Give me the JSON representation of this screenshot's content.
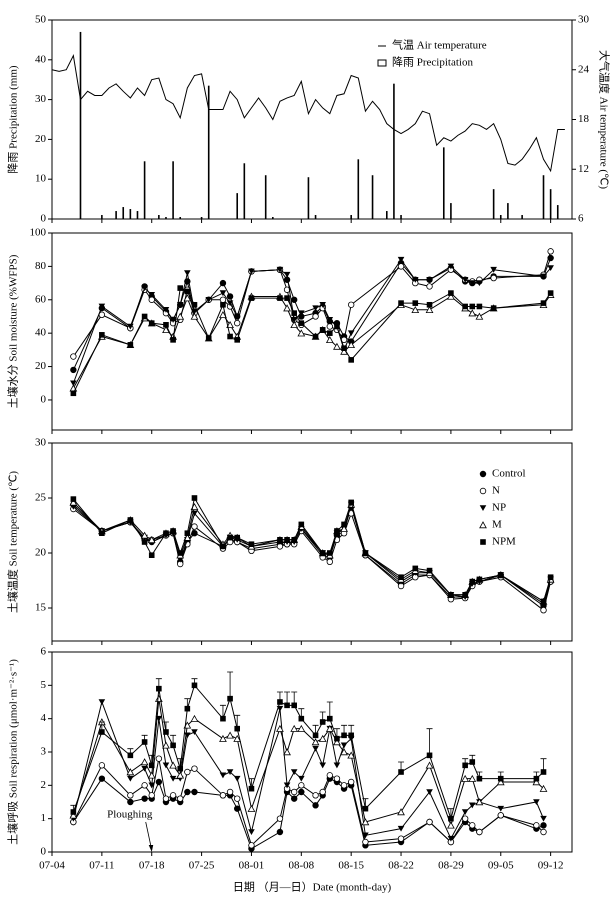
{
  "chart_data": [
    {
      "type": "combo",
      "ylabel": "降雨 Precipitation (mm)",
      "y2label": "大气温度  Air temperature (℃)",
      "ylim": [
        0,
        50
      ],
      "yticks": [
        0,
        10,
        20,
        30,
        40,
        50
      ],
      "y2lim": [
        6,
        30
      ],
      "y2ticks": [
        6,
        12,
        18,
        24,
        30
      ],
      "legend": "upper right",
      "series": [
        {
          "name": "气温 Air temperature",
          "type": "line",
          "axis": "y2",
          "color": "#000000",
          "x": [
            "07-04",
            "07-05",
            "07-06",
            "07-07",
            "07-08",
            "07-09",
            "07-10",
            "07-11",
            "07-12",
            "07-13",
            "07-14",
            "07-15",
            "07-16",
            "07-17",
            "07-18",
            "07-19",
            "07-20",
            "07-21",
            "07-22",
            "07-23",
            "07-24",
            "07-25",
            "07-26",
            "07-27",
            "07-28",
            "07-29",
            "07-30",
            "07-31",
            "08-01",
            "08-02",
            "08-03",
            "08-04",
            "08-05",
            "08-06",
            "08-07",
            "08-08",
            "08-09",
            "08-10",
            "08-11",
            "08-12",
            "08-13",
            "08-14",
            "08-15",
            "08-16",
            "08-17",
            "08-18",
            "08-19",
            "08-20",
            "08-21",
            "08-22",
            "08-23",
            "08-24",
            "08-25",
            "08-26",
            "08-27",
            "08-28",
            "08-29",
            "08-30",
            "08-31",
            "09-01",
            "09-02",
            "09-03",
            "09-04",
            "09-05",
            "09-06",
            "09-07",
            "09-08",
            "09-09",
            "09-10",
            "09-11",
            "09-12",
            "09-13",
            "09-14"
          ],
          "values": [
            24.0,
            23.8,
            24.0,
            25.7,
            20.4,
            21.4,
            20.9,
            20.9,
            21.8,
            22.3,
            21.4,
            20.6,
            21.8,
            20.9,
            22.8,
            23.0,
            20.4,
            19.9,
            18.2,
            21.8,
            23.3,
            23.5,
            19.2,
            19.2,
            19.2,
            21.4,
            20.4,
            18.2,
            19.4,
            20.6,
            19.4,
            18.0,
            20.2,
            20.6,
            20.9,
            22.6,
            18.7,
            20.4,
            19.4,
            18.7,
            20.9,
            21.1,
            23.3,
            23.0,
            19.0,
            20.2,
            19.2,
            17.5,
            16.8,
            16.3,
            16.8,
            17.5,
            19.0,
            18.7,
            14.9,
            15.8,
            15.4,
            16.1,
            16.6,
            17.5,
            17.3,
            16.8,
            17.5,
            15.6,
            12.7,
            12.5,
            13.2,
            14.4,
            15.8,
            13.2,
            11.8,
            16.8,
            16.8
          ]
        },
        {
          "name": "降雨 Precipitation",
          "type": "bar",
          "color": "#000000",
          "x": [
            "07-08",
            "07-11",
            "07-13",
            "07-14",
            "07-15",
            "07-16",
            "07-17",
            "07-19",
            "07-20",
            "07-21",
            "07-22",
            "07-25",
            "07-26",
            "07-30",
            "07-31",
            "08-03",
            "08-04",
            "08-09",
            "08-10",
            "08-15",
            "08-16",
            "08-18",
            "08-20",
            "08-21",
            "08-22",
            "08-28",
            "08-29",
            "09-04",
            "09-05",
            "09-06",
            "09-08",
            "09-11",
            "09-12",
            "09-13"
          ],
          "values": [
            47,
            1,
            2,
            3,
            2.5,
            2,
            14.5,
            1,
            0.5,
            14.5,
            0.5,
            0.5,
            33.5,
            6.5,
            14,
            11,
            0.5,
            10.5,
            1,
            1,
            15,
            11,
            2,
            34,
            1,
            18,
            4,
            7.5,
            1,
            4,
            1,
            11,
            7.5,
            3.5
          ]
        }
      ]
    },
    {
      "type": "line",
      "ylabel": "土壤水分 Soil moisture (%WFPS)",
      "ylim": [
        -18,
        100
      ],
      "yticks": [
        0,
        20,
        40,
        60,
        80,
        100
      ],
      "x": [
        "07-07",
        "07-11",
        "07-15",
        "07-17",
        "07-18",
        "07-20",
        "07-21",
        "07-22",
        "07-23",
        "07-24",
        "07-26",
        "07-28",
        "07-29",
        "07-30",
        "08-01",
        "08-05",
        "08-06",
        "08-07",
        "08-08",
        "08-10",
        "08-11",
        "08-12",
        "08-13",
        "08-14",
        "08-15",
        "08-22",
        "08-24",
        "08-26",
        "08-29",
        "08-31",
        "09-01",
        "09-02",
        "09-04",
        "09-11",
        "09-12"
      ],
      "series": [
        {
          "name": "Control",
          "marker": "circle",
          "color": "#000000",
          "values": [
            18,
            55,
            43,
            68,
            62,
            53,
            48,
            57,
            71,
            52,
            60,
            70,
            62,
            50,
            77,
            78,
            72,
            60,
            50,
            52,
            56,
            47,
            46,
            38,
            35,
            82,
            72,
            72,
            79,
            71,
            70,
            71,
            74,
            74,
            85
          ]
        },
        {
          "name": "N",
          "marker": "circle-open",
          "color": "#000000",
          "values": [
            26,
            51,
            43,
            66,
            60,
            52,
            46,
            48,
            66,
            52,
            60,
            60,
            56,
            46,
            77,
            78,
            66,
            48,
            45,
            50,
            55,
            44,
            42,
            36,
            57,
            80,
            70,
            68,
            78,
            72,
            71,
            72,
            73,
            75,
            89
          ]
        },
        {
          "name": "NP",
          "marker": "triangle-down",
          "color": "#000000",
          "values": [
            10,
            56,
            44,
            67,
            63,
            54,
            48,
            57,
            76,
            53,
            60,
            64,
            58,
            50,
            77,
            78,
            75,
            48,
            52,
            55,
            57,
            48,
            44,
            30,
            40,
            84,
            72,
            72,
            80,
            72,
            70,
            70,
            78,
            74,
            79
          ]
        },
        {
          "name": "M",
          "marker": "triangle-open",
          "color": "#000000",
          "values": [
            7,
            38,
            33,
            49,
            46,
            42,
            38,
            50,
            61,
            50,
            37,
            51,
            45,
            38,
            62,
            62,
            55,
            45,
            40,
            38,
            42,
            36,
            32,
            29,
            33,
            57,
            54,
            54,
            62,
            55,
            52,
            50,
            55,
            57,
            63
          ]
        },
        {
          "name": "NPM",
          "marker": "square",
          "color": "#000000",
          "values": [
            4,
            39,
            33,
            50,
            46,
            45,
            36,
            67,
            65,
            57,
            37,
            57,
            38,
            36,
            61,
            61,
            61,
            52,
            46,
            38,
            42,
            40,
            44,
            31,
            24,
            58,
            58,
            57,
            64,
            56,
            56,
            56,
            55,
            58,
            64
          ]
        }
      ]
    },
    {
      "type": "line",
      "ylabel": "土壤温度 Soil temperature (℃)",
      "ylim": [
        12,
        30
      ],
      "yticks": [
        15,
        20,
        25,
        30
      ],
      "legend": "upper right",
      "x": [
        "07-07",
        "07-11",
        "07-15",
        "07-17",
        "07-18",
        "07-20",
        "07-21",
        "07-22",
        "07-23",
        "07-24",
        "07-28",
        "07-29",
        "07-30",
        "08-01",
        "08-05",
        "08-06",
        "08-07",
        "08-08",
        "08-11",
        "08-12",
        "08-13",
        "08-14",
        "08-15",
        "08-17",
        "08-22",
        "08-24",
        "08-26",
        "08-29",
        "08-31",
        "09-01",
        "09-02",
        "09-05",
        "09-11",
        "09-12"
      ],
      "series": [
        {
          "name": "Control",
          "marker": "circle",
          "color": "#000000",
          "values": [
            24.4,
            22.0,
            22.8,
            21.2,
            21.0,
            21.6,
            21.8,
            19.2,
            21.0,
            21.8,
            20.6,
            21.2,
            21.0,
            20.4,
            20.8,
            20.8,
            21.0,
            22.2,
            19.8,
            19.6,
            21.6,
            22.0,
            24.2,
            19.8,
            17.2,
            18.0,
            18.0,
            16.0,
            16.0,
            17.2,
            17.4,
            18.0,
            15.2,
            17.4
          ]
        },
        {
          "name": "N",
          "marker": "circle-open",
          "color": "#000000",
          "values": [
            24.0,
            22.0,
            22.8,
            21.2,
            21.2,
            21.6,
            21.8,
            19.0,
            20.8,
            22.4,
            20.4,
            21.0,
            21.0,
            20.2,
            20.6,
            20.8,
            20.8,
            22.0,
            19.6,
            19.2,
            21.2,
            21.8,
            23.6,
            19.8,
            17.0,
            17.8,
            18.0,
            15.8,
            15.9,
            17.0,
            17.4,
            17.8,
            14.8,
            17.4
          ]
        },
        {
          "name": "NP",
          "marker": "triangle-down",
          "color": "#000000",
          "values": [
            24.2,
            22.0,
            22.8,
            21.4,
            21.0,
            21.6,
            21.8,
            19.4,
            21.2,
            23.6,
            20.6,
            21.4,
            21.2,
            20.6,
            21.0,
            21.0,
            21.0,
            22.2,
            20.0,
            19.8,
            21.8,
            22.2,
            24.4,
            20.0,
            17.4,
            18.2,
            18.2,
            16.2,
            16.0,
            17.2,
            17.4,
            18.0,
            15.4,
            17.6
          ]
        },
        {
          "name": "M",
          "marker": "triangle-open",
          "color": "#000000",
          "values": [
            24.6,
            22.0,
            23.0,
            21.6,
            21.2,
            21.8,
            22.0,
            19.8,
            21.4,
            24.2,
            20.8,
            21.6,
            21.4,
            20.6,
            21.2,
            21.2,
            21.2,
            22.4,
            20.0,
            19.8,
            22.0,
            22.2,
            24.4,
            20.0,
            17.6,
            18.4,
            18.2,
            16.2,
            16.2,
            17.4,
            17.6,
            18.0,
            15.6,
            17.6
          ]
        },
        {
          "name": "NPM",
          "marker": "square",
          "color": "#000000",
          "values": [
            24.9,
            21.8,
            23.0,
            21.0,
            19.8,
            21.8,
            22.0,
            20.0,
            21.8,
            25.0,
            20.6,
            21.4,
            21.4,
            20.8,
            21.2,
            21.2,
            21.2,
            22.6,
            20.0,
            20.0,
            22.0,
            22.6,
            24.6,
            20.0,
            17.8,
            18.6,
            18.4,
            16.2,
            16.2,
            17.4,
            17.6,
            18.0,
            15.6,
            17.8
          ]
        }
      ]
    },
    {
      "type": "line",
      "ylabel": "土壤呼吸 Soil respiration (μmol·m⁻²·s⁻¹)",
      "xlabel": "日期 （月—日）Date (month-day)",
      "ylim": [
        0,
        6
      ],
      "yticks": [
        0,
        1,
        2,
        3,
        4,
        5,
        6
      ],
      "xlim": [
        "07-04",
        "09-15"
      ],
      "xticks": [
        "07-04",
        "07-11",
        "07-18",
        "07-25",
        "08-01",
        "08-08",
        "08-15",
        "08-22",
        "08-29",
        "09-05",
        "09-12"
      ],
      "annotations": [
        {
          "text": "Ploughing",
          "x": "07-18"
        }
      ],
      "x": [
        "07-07",
        "07-11",
        "07-15",
        "07-17",
        "07-18",
        "07-19",
        "07-20",
        "07-21",
        "07-22",
        "07-23",
        "07-24",
        "07-28",
        "07-29",
        "07-30",
        "08-01",
        "08-05",
        "08-06",
        "08-07",
        "08-08",
        "08-10",
        "08-11",
        "08-12",
        "08-13",
        "08-14",
        "08-15",
        "08-17",
        "08-22",
        "08-26",
        "08-29",
        "08-31",
        "09-01",
        "09-02",
        "09-05",
        "09-10",
        "09-11"
      ],
      "series": [
        {
          "name": "Control",
          "marker": "circle",
          "color": "#000000",
          "values": [
            0.9,
            2.2,
            1.5,
            1.6,
            1.6,
            2.1,
            1.5,
            1.6,
            1.5,
            1.8,
            1.8,
            1.7,
            1.7,
            1.3,
            0.1,
            0.6,
            1.8,
            1.6,
            1.8,
            1.4,
            1.7,
            2.2,
            2.1,
            1.9,
            2.0,
            0.2,
            0.3,
            0.9,
            0.3,
            0.9,
            0.7,
            0.6,
            1.1,
            0.7,
            0.8
          ]
        },
        {
          "name": "N",
          "marker": "circle-open",
          "color": "#000000",
          "values": [
            0.9,
            2.6,
            1.7,
            2.0,
            1.7,
            2.8,
            1.6,
            1.7,
            1.6,
            2.4,
            2.5,
            1.7,
            1.8,
            1.6,
            0.2,
            1.0,
            1.9,
            1.8,
            2.0,
            1.7,
            1.8,
            2.3,
            2.2,
            2.0,
            2.1,
            0.3,
            0.4,
            0.9,
            0.3,
            1.0,
            0.8,
            0.6,
            1.1,
            0.8,
            0.6
          ]
        },
        {
          "name": "NP",
          "marker": "triangle-down",
          "color": "#000000",
          "values": [
            1.0,
            4.5,
            2.2,
            2.5,
            2.0,
            4.0,
            2.6,
            2.2,
            2.2,
            3.5,
            3.6,
            2.3,
            2.4,
            2.2,
            0.6,
            4.3,
            2.0,
            2.4,
            2.2,
            3.1,
            2.6,
            3.7,
            2.6,
            3.2,
            3.4,
            0.5,
            0.7,
            1.8,
            0.4,
            1.2,
            1.4,
            1.5,
            1.3,
            1.5,
            1.0
          ]
        },
        {
          "name": "M",
          "marker": "triangle-open",
          "color": "#000000",
          "values": [
            1.1,
            3.9,
            2.4,
            2.7,
            2.3,
            4.6,
            3.2,
            2.6,
            2.3,
            3.8,
            4.0,
            3.4,
            3.5,
            3.4,
            1.3,
            3.7,
            3.0,
            3.7,
            3.7,
            3.3,
            3.4,
            3.7,
            3.3,
            3.0,
            2.9,
            0.9,
            1.2,
            2.6,
            0.8,
            2.2,
            2.2,
            1.5,
            2.1,
            2.1,
            1.9
          ]
        },
        {
          "name": "NPM",
          "marker": "square",
          "color": "#000000",
          "values": [
            1.2,
            3.6,
            2.9,
            3.3,
            2.6,
            4.9,
            3.6,
            3.2,
            2.5,
            4.3,
            5.0,
            4.0,
            4.6,
            3.7,
            1.9,
            4.5,
            4.4,
            4.4,
            4.0,
            3.5,
            3.9,
            4.0,
            3.4,
            3.5,
            3.5,
            1.3,
            2.4,
            2.9,
            1.0,
            2.6,
            2.7,
            2.2,
            2.2,
            2.2,
            2.4
          ],
          "errors": [
            0.2,
            0.3,
            0.2,
            0.2,
            0.3,
            0.3,
            0.3,
            0.3,
            0.3,
            0.3,
            0.2,
            0.4,
            0.8,
            0.4,
            0.3,
            0.3,
            0.4,
            0.4,
            0.3,
            0.3,
            0.3,
            0.5,
            0.3,
            0.3,
            0.3,
            0.3,
            0.3,
            0.8,
            0.3,
            0.2,
            0.2,
            0.2,
            0.2,
            0.2,
            0.4
          ]
        }
      ]
    }
  ]
}
